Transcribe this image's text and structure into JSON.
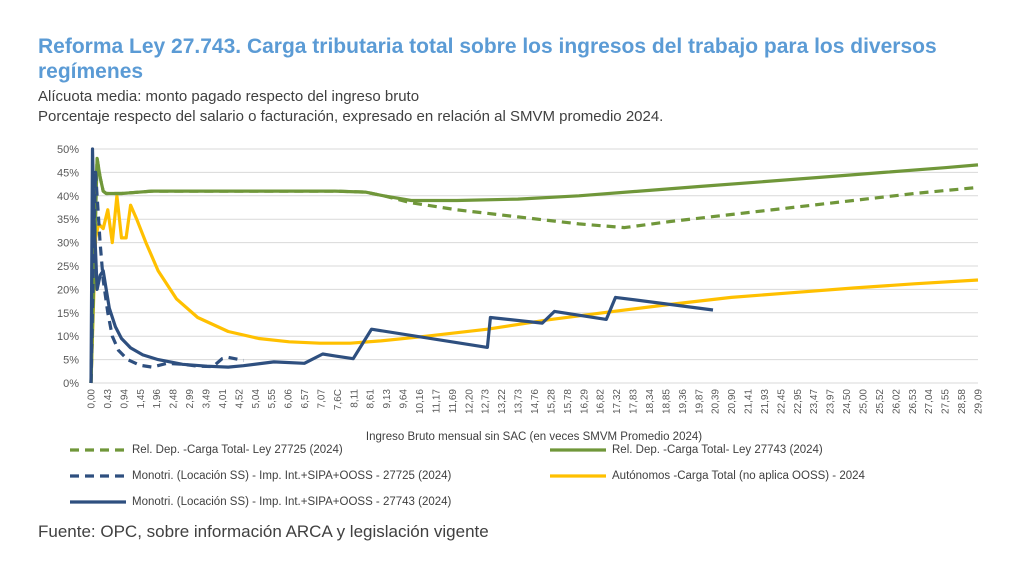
{
  "title": "Reforma Ley 27.743. Carga tributaria total sobre los ingresos del trabajo para los diversos regímenes",
  "subtitle1": "Alícuota media: monto pagado respecto del ingreso bruto",
  "subtitle2": "Porcentaje respecto del salario o facturación, expresado en relación al SMVM promedio 2024.",
  "source": "Fuente: OPC, sobre información ARCA y legislación vigente",
  "chart_data": {
    "type": "line",
    "xlabel": "Ingreso Bruto mensual sin SAC (en veces SMVM Promedio 2024)",
    "ylabel": "",
    "xlim": [
      0,
      29.09
    ],
    "ylim": [
      0,
      50
    ],
    "grid": true,
    "legend_position": "bottom",
    "y_ticks": [
      "0%",
      "5%",
      "10%",
      "15%",
      "20%",
      "25%",
      "30%",
      "35%",
      "40%",
      "45%",
      "50%"
    ],
    "x_ticks": [
      "0,00",
      "0,43",
      "0,94",
      "1,45",
      "1,96",
      "2,48",
      "2,99",
      "3,49",
      "4,01",
      "4,52",
      "5,04",
      "5,55",
      "6,06",
      "6,57",
      "7,07",
      "7,6C",
      "8,11",
      "8,61",
      "9,13",
      "9,64",
      "10,16",
      "11,17",
      "11,69",
      "12,20",
      "12,73",
      "13,22",
      "13,73",
      "14,76",
      "15,28",
      "15,78",
      "16,29",
      "16,82",
      "17,32",
      "17,83",
      "18,34",
      "18,85",
      "19,36",
      "19,87",
      "20,39",
      "20,90",
      "21,41",
      "21,93",
      "22,45",
      "22,95",
      "23,47",
      "23,97",
      "24,50",
      "25,00",
      "25,52",
      "26,02",
      "26,53",
      "27,04",
      "27,55",
      "28,58",
      "29,09"
    ],
    "series": [
      {
        "name": "Rel. Dep. -Carga Total- Ley 27725 (2024)",
        "color": "#70973a",
        "dash": true,
        "x": [
          0.0,
          0.2,
          0.3,
          0.4,
          0.5,
          1.0,
          2.0,
          4.0,
          6.0,
          8.0,
          9.0,
          9.6,
          10.5,
          12.0,
          14.0,
          16.0,
          17.5,
          19.0,
          21.0,
          23.0,
          25.0,
          27.0,
          29.09
        ],
        "values": [
          0,
          48,
          44,
          41,
          40.5,
          40.5,
          41,
          41,
          41,
          41,
          40.8,
          40,
          38.5,
          37,
          35.5,
          34,
          33.2,
          34.5,
          36,
          37.5,
          39,
          40.5,
          41.8
        ]
      },
      {
        "name": "Rel. Dep. -Carga Total- Ley 27743 (2024)",
        "color": "#70973a",
        "dash": false,
        "x": [
          0.0,
          0.2,
          0.3,
          0.4,
          0.5,
          1.0,
          2.0,
          4.0,
          6.0,
          8.0,
          9.0,
          9.6,
          10.5,
          12.0,
          14.0,
          16.0,
          18.0,
          20.0,
          22.0,
          24.0,
          26.0,
          28.0,
          29.09
        ],
        "values": [
          0,
          48,
          44,
          41,
          40.5,
          40.5,
          41,
          41,
          41,
          41,
          40.8,
          40,
          39,
          39,
          39.3,
          40,
          41,
          42,
          43,
          44,
          45,
          46,
          46.6
        ]
      },
      {
        "name": "Monotri. (Locación SS) - Imp. Int.+SIPA+OOSS - 27725 (2024)",
        "color": "#2e4f7f",
        "dash": true,
        "x": [
          0.0,
          0.1,
          0.15,
          0.22,
          0.3,
          0.4,
          0.55,
          0.7,
          0.9,
          1.2,
          1.6,
          2.0,
          2.5,
          3.0,
          3.5,
          4.0,
          4.3,
          4.5,
          5.0
        ],
        "values": [
          0,
          33,
          45,
          38,
          30,
          22,
          15,
          10,
          7,
          5,
          3.8,
          3.4,
          4.2,
          4,
          3.6,
          3.5,
          5.2,
          5.5,
          4.8
        ]
      },
      {
        "name": "Autónomos -Carga Total (no aplica OOSS) - 2024",
        "color": "#ffc000",
        "dash": false,
        "x": [
          0.0,
          0.15,
          0.25,
          0.4,
          0.55,
          0.7,
          0.85,
          1.0,
          1.15,
          1.3,
          1.5,
          1.8,
          2.2,
          2.8,
          3.5,
          4.5,
          5.5,
          6.5,
          7.5,
          8.5,
          9.5,
          11.0,
          13.0,
          15.0,
          17.0,
          19.0,
          21.0,
          23.0,
          25.0,
          27.0,
          29.09
        ],
        "values": [
          0,
          31,
          34,
          33,
          37,
          30,
          40,
          31,
          31,
          38,
          35,
          30,
          24,
          18,
          14,
          11,
          9.5,
          8.8,
          8.5,
          8.5,
          9,
          10,
          11.5,
          13.5,
          15.2,
          16.8,
          18.3,
          19.3,
          20.3,
          21.2,
          22
        ]
      },
      {
        "name": "Monotri. (Locación SS) - Imp. Int.+SIPA+OOSS - 27743 (2024)",
        "color": "#2e4f7f",
        "dash": false,
        "x": [
          0.0,
          0.05,
          0.1,
          0.15,
          0.2,
          0.3,
          0.4,
          0.5,
          0.6,
          0.8,
          1.0,
          1.3,
          1.7,
          2.2,
          3.0,
          3.8,
          4.5,
          5.0,
          6.0,
          7.0,
          7.6,
          8.0,
          8.6,
          9.2,
          13.0,
          13.1,
          14.8,
          15.2,
          16.9,
          17.2,
          20.4
        ],
        "values": [
          0,
          50,
          35,
          28,
          20,
          23,
          24,
          20,
          16,
          12,
          9.5,
          7.5,
          6,
          5,
          4,
          3.6,
          3.4,
          3.7,
          4.5,
          4.2,
          6.2,
          5.8,
          5.2,
          11.5,
          7.6,
          14,
          12.8,
          15.3,
          13.6,
          18.3,
          15.6
        ]
      }
    ]
  }
}
